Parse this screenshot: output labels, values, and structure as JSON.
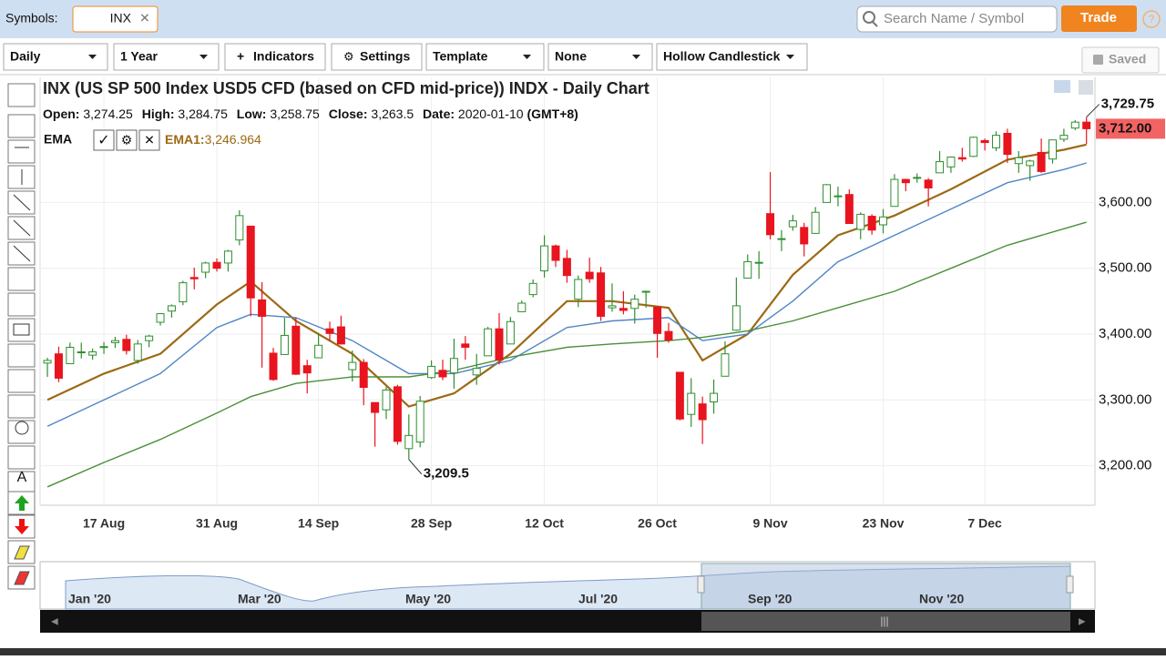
{
  "header": {
    "symbols_label": "Symbols:",
    "symbol": "INX",
    "search_placeholder": "Search Name / Symbol",
    "trade_button": "Trade"
  },
  "toolbar": {
    "buttons": [
      "Daily",
      "1 Year",
      "Indicators",
      "Settings",
      "Template",
      "None",
      "Hollow Candlestick"
    ],
    "saved": "Saved"
  },
  "chart_data": {
    "type": "candlestick",
    "title": "INX (US SP 500 Index USD5 CFD (based on CFD mid-price)) INDX - Daily Chart",
    "info": [
      {
        "label": "Open:",
        "value": "3,274.25"
      },
      {
        "label": "High:",
        "value": "3,284.75"
      },
      {
        "label": "Low:",
        "value": "3,258.75"
      },
      {
        "label": "Close:",
        "value": "3,263.5"
      },
      {
        "label": "Date:",
        "value": "2020-01-10",
        "tz": "(GMT+8)"
      }
    ],
    "indicator": {
      "name": "EMA",
      "label": "EMA1:",
      "value": "3,246.964"
    },
    "up_color": "#2f8f2f",
    "down_color": "#e8141e",
    "grid": true,
    "xlim": [
      -0.65,
      92.75
    ],
    "ylim": [
      3140,
      3790
    ],
    "yticks": [
      {
        "value": 3200,
        "label": "3,200.00"
      },
      {
        "value": 3300,
        "label": "3,300.00"
      },
      {
        "value": 3400,
        "label": "3,400.00"
      },
      {
        "value": 3500,
        "label": "3,500.00"
      },
      {
        "value": 3600,
        "label": "3,600.00"
      }
    ],
    "xticks": [
      {
        "value": 5,
        "label": "17 Aug"
      },
      {
        "value": 15,
        "label": "31 Aug"
      },
      {
        "value": 24,
        "label": "14 Sep"
      },
      {
        "value": 34,
        "label": "28 Sep"
      },
      {
        "value": 44,
        "label": "12 Oct"
      },
      {
        "value": 54,
        "label": "26 Oct"
      },
      {
        "value": 64,
        "label": "9 Nov"
      },
      {
        "value": 74,
        "label": "23 Nov"
      },
      {
        "value": 83,
        "label": "7 Dec"
      }
    ],
    "candles": [
      [
        3356,
        3364,
        3335,
        3360
      ],
      [
        3370,
        3381,
        3327,
        3333
      ],
      [
        3355,
        3387,
        3355,
        3380
      ],
      [
        3372,
        3387,
        3363,
        3373
      ],
      [
        3368,
        3378,
        3361,
        3373
      ],
      [
        3380,
        3388,
        3370,
        3381
      ],
      [
        3387,
        3396,
        3379,
        3390
      ],
      [
        3392,
        3399,
        3369,
        3375
      ],
      [
        3360,
        3391,
        3355,
        3385
      ],
      [
        3390,
        3399,
        3380,
        3397
      ],
      [
        3418,
        3432,
        3413,
        3431
      ],
      [
        3435,
        3445,
        3425,
        3443
      ],
      [
        3449,
        3481,
        3444,
        3478
      ],
      [
        3486,
        3501,
        3468,
        3484
      ],
      [
        3494,
        3510,
        3485,
        3508
      ],
      [
        3509,
        3515,
        3495,
        3500
      ],
      [
        3508,
        3528,
        3495,
        3526
      ],
      [
        3543,
        3588,
        3535,
        3580
      ],
      [
        3564,
        3564,
        3427,
        3455
      ],
      [
        3452,
        3479,
        3349,
        3427
      ],
      [
        3371,
        3379,
        3329,
        3331
      ],
      [
        3369,
        3425,
        3369,
        3398
      ],
      [
        3412,
        3425,
        3338,
        3339
      ],
      [
        3352,
        3361,
        3310,
        3341
      ],
      [
        3364,
        3402,
        3364,
        3383
      ],
      [
        3408,
        3419,
        3389,
        3401
      ],
      [
        3411,
        3428,
        3384,
        3385
      ],
      [
        3346,
        3375,
        3328,
        3357
      ],
      [
        3357,
        3362,
        3292,
        3319
      ],
      [
        3296,
        3296,
        3229,
        3281
      ],
      [
        3285,
        3320,
        3271,
        3315
      ],
      [
        3320,
        3323,
        3232,
        3237
      ],
      [
        3226,
        3278,
        3209.5,
        3246
      ],
      [
        3236,
        3306,
        3228,
        3298
      ],
      [
        3334,
        3360,
        3332,
        3351
      ],
      [
        3345,
        3361,
        3330,
        3335
      ],
      [
        3341,
        3393,
        3317,
        3363
      ],
      [
        3385,
        3397,
        3361,
        3380
      ],
      [
        3338,
        3370,
        3323,
        3348
      ],
      [
        3367,
        3411,
        3367,
        3408
      ],
      [
        3408,
        3432,
        3354,
        3361
      ],
      [
        3385,
        3426,
        3385,
        3419
      ],
      [
        3434,
        3451,
        3434,
        3447
      ],
      [
        3460,
        3483,
        3456,
        3477
      ],
      [
        3496,
        3550,
        3486,
        3534
      ],
      [
        3534,
        3536,
        3502,
        3512
      ],
      [
        3515,
        3528,
        3478,
        3489
      ],
      [
        3453,
        3489,
        3441,
        3483
      ],
      [
        3494,
        3516,
        3478,
        3484
      ],
      [
        3493,
        3502,
        3420,
        3427
      ],
      [
        3440,
        3477,
        3434,
        3443
      ],
      [
        3439,
        3465,
        3430,
        3436
      ],
      [
        3439,
        3460,
        3416,
        3453
      ],
      [
        3465,
        3466,
        3440,
        3465
      ],
      [
        3441,
        3441,
        3364,
        3401
      ],
      [
        3404,
        3417,
        3387,
        3391
      ],
      [
        3342,
        3342,
        3269,
        3271
      ],
      [
        3278,
        3333,
        3259,
        3310
      ],
      [
        3294,
        3305,
        3233,
        3270
      ],
      [
        3297,
        3331,
        3279,
        3310
      ],
      [
        3336,
        3389,
        3336,
        3370
      ],
      [
        3406,
        3486,
        3405,
        3443
      ],
      [
        3485,
        3521,
        3485,
        3510
      ],
      [
        3509,
        3526,
        3484,
        3509
      ],
      [
        3583,
        3646,
        3544,
        3551
      ],
      [
        3544,
        3558,
        3526,
        3545
      ],
      [
        3563,
        3581,
        3557,
        3572
      ],
      [
        3562,
        3569,
        3518,
        3537
      ],
      [
        3553,
        3593,
        3552,
        3585
      ],
      [
        3600,
        3628,
        3600,
        3627
      ],
      [
        3610,
        3624,
        3594,
        3610
      ],
      [
        3612,
        3620,
        3568,
        3568
      ],
      [
        3559,
        3585,
        3544,
        3582
      ],
      [
        3579,
        3582,
        3551,
        3558
      ],
      [
        3566,
        3590,
        3553,
        3578
      ],
      [
        3594,
        3643,
        3594,
        3635
      ],
      [
        3635,
        3636,
        3617,
        3630
      ],
      [
        3638,
        3644,
        3630,
        3638
      ],
      [
        3634,
        3637,
        3594,
        3622
      ],
      [
        3645,
        3678,
        3645,
        3662
      ],
      [
        3654,
        3670,
        3645,
        3669
      ],
      [
        3668,
        3683,
        3662,
        3666
      ],
      [
        3670,
        3700,
        3669,
        3699
      ],
      [
        3694,
        3697,
        3679,
        3691
      ],
      [
        3683,
        3708,
        3678,
        3702
      ],
      [
        3705,
        3712,
        3660,
        3673
      ],
      [
        3659,
        3678,
        3645,
        3668
      ],
      [
        3656,
        3665,
        3633,
        3663
      ],
      [
        3676,
        3697,
        3645,
        3647
      ],
      [
        3666,
        3695,
        3659,
        3695
      ],
      [
        3696,
        3712,
        3692,
        3702
      ],
      [
        3713,
        3725,
        3710,
        3722
      ],
      [
        3722,
        3729.75,
        3689,
        3712
      ]
    ],
    "series": [
      {
        "name": "EMA1",
        "color": "#9c6a14",
        "x": [
          0,
          5,
          10,
          15,
          18,
          22,
          27,
          32,
          36,
          41,
          46,
          50,
          55,
          58,
          62,
          66,
          70,
          75,
          80,
          85,
          90,
          92
        ],
        "values": [
          3300,
          3340,
          3370,
          3445,
          3480,
          3420,
          3370,
          3290,
          3310,
          3370,
          3450,
          3450,
          3440,
          3360,
          3400,
          3490,
          3550,
          3580,
          3620,
          3665,
          3680,
          3688
        ]
      },
      {
        "color": "#4f86c6",
        "x": [
          0,
          5,
          10,
          15,
          18,
          22,
          27,
          32,
          36,
          41,
          46,
          50,
          55,
          58,
          62,
          66,
          70,
          75,
          80,
          85,
          90,
          92
        ],
        "values": [
          3260,
          3300,
          3340,
          3410,
          3430,
          3425,
          3390,
          3340,
          3340,
          3360,
          3410,
          3420,
          3425,
          3390,
          3400,
          3450,
          3510,
          3550,
          3590,
          3630,
          3650,
          3660
        ]
      },
      {
        "color": "#4a8f3a",
        "x": [
          0,
          5,
          10,
          15,
          18,
          22,
          27,
          32,
          36,
          41,
          46,
          50,
          55,
          58,
          62,
          66,
          70,
          75,
          80,
          85,
          90,
          92
        ],
        "values": [
          3168,
          3205,
          3240,
          3280,
          3305,
          3325,
          3335,
          3335,
          3345,
          3365,
          3380,
          3385,
          3390,
          3395,
          3405,
          3420,
          3440,
          3465,
          3500,
          3535,
          3560,
          3570
        ]
      }
    ],
    "last_price": {
      "value": 3712,
      "label": "3,712.00"
    },
    "annotations": [
      {
        "index": 92,
        "value": 3729.75,
        "label": "3,729.75"
      },
      {
        "index": 32,
        "value": 3209.5,
        "label": "3,209.5"
      }
    ],
    "navigator_labels": [
      "Jan '20",
      "Mar '20",
      "May '20",
      "Jul '20",
      "Sep '20",
      "Nov '20"
    ]
  }
}
